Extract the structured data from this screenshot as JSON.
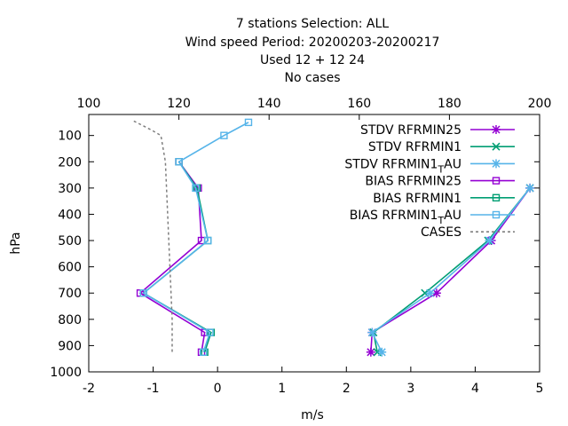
{
  "chart_data": {
    "type": "line",
    "title_lines": [
      "7 stations Selection: ALL",
      "Wind speed  Period: 20200203-20200217",
      "Used  12 + 12 24",
      "No cases"
    ],
    "xlabel": "m/s",
    "ylabel": "hPa",
    "xlim": [
      -2,
      5
    ],
    "x2lim": [
      100,
      200
    ],
    "ylim": [
      1000,
      20
    ],
    "x_ticks": [
      -2,
      -1,
      0,
      1,
      2,
      3,
      4,
      5
    ],
    "x2_ticks": [
      100,
      120,
      140,
      160,
      180,
      200
    ],
    "y_ticks": [
      100,
      200,
      300,
      400,
      500,
      600,
      700,
      800,
      900,
      1000
    ],
    "legend_position": "top-right",
    "series": [
      {
        "name": "STDV RFRMIN25",
        "color": "#9400d3",
        "marker": "star",
        "axis": "bottom",
        "points": [
          [
            4.85,
            300
          ],
          [
            4.25,
            500
          ],
          [
            3.4,
            700
          ],
          [
            2.4,
            850
          ],
          [
            2.38,
            925
          ]
        ]
      },
      {
        "name": "STDV RFRMIN1",
        "color": "#009e73",
        "marker": "x",
        "axis": "bottom",
        "points": [
          [
            4.85,
            300
          ],
          [
            4.2,
            500
          ],
          [
            3.22,
            700
          ],
          [
            2.42,
            850
          ],
          [
            2.48,
            925
          ]
        ]
      },
      {
        "name_prefix": "STDV RFRMIN1",
        "name_sub": "T",
        "name_suffix": "AU",
        "color": "#56b4e9",
        "marker": "star",
        "axis": "bottom",
        "points": [
          [
            4.85,
            300
          ],
          [
            4.22,
            500
          ],
          [
            3.3,
            700
          ],
          [
            2.4,
            850
          ],
          [
            2.55,
            925
          ]
        ]
      },
      {
        "name": "BIAS RFRMIN25",
        "color": "#9400d3",
        "marker": "square",
        "axis": "bottom",
        "points": [
          [
            -0.6,
            200
          ],
          [
            -0.3,
            300
          ],
          [
            -0.25,
            500
          ],
          [
            -1.2,
            700
          ],
          [
            -0.2,
            850
          ],
          [
            -0.25,
            925
          ]
        ]
      },
      {
        "name": "BIAS RFRMIN1",
        "color": "#009e73",
        "marker": "square",
        "axis": "bottom",
        "points": [
          [
            -0.6,
            200
          ],
          [
            -0.32,
            300
          ],
          [
            -0.15,
            500
          ],
          [
            -1.15,
            700
          ],
          [
            -0.1,
            850
          ],
          [
            -0.2,
            925
          ]
        ]
      },
      {
        "name_prefix": "BIAS RFRMIN1",
        "name_sub": "T",
        "name_suffix": "AU",
        "color": "#56b4e9",
        "marker": "square",
        "axis": "bottom",
        "points": [
          [
            0.48,
            50
          ],
          [
            0.1,
            100
          ],
          [
            -0.6,
            200
          ],
          [
            -0.34,
            300
          ],
          [
            -0.15,
            500
          ],
          [
            -1.15,
            700
          ],
          [
            -0.12,
            850
          ],
          [
            -0.22,
            925
          ]
        ]
      },
      {
        "name": "CASES",
        "color": "#7f7f7f",
        "marker": "none",
        "dash": true,
        "axis": "top",
        "points": [
          [
            110,
            45
          ],
          [
            114,
            80
          ],
          [
            116,
            100
          ],
          [
            117,
            200
          ],
          [
            117.5,
            400
          ],
          [
            118,
            600
          ],
          [
            118.5,
            800
          ],
          [
            118.5,
            925
          ]
        ]
      }
    ]
  }
}
